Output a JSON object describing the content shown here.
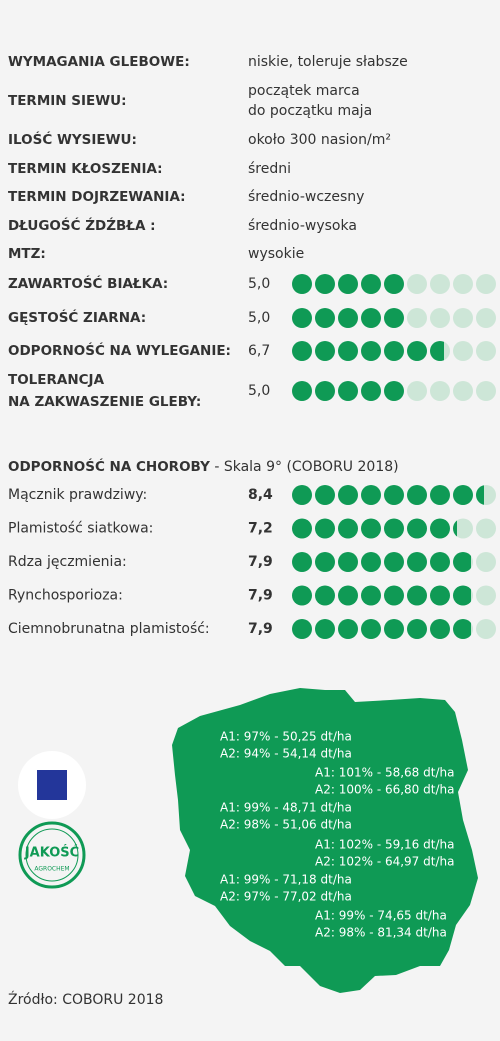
{
  "traits": [
    {
      "label": "WYMAGANIA GLEBOWE:",
      "value": [
        "niskie, toleruje słabsze"
      ]
    },
    {
      "label": "TERMIN SIEWU:",
      "value": [
        "początek marca",
        "do początku maja"
      ]
    },
    {
      "label": "ILOŚĆ WYSIEWU:",
      "value": [
        "około 300 nasion/m²"
      ]
    },
    {
      "label": "TERMIN KŁOSZENIA:",
      "value": [
        "średni"
      ]
    },
    {
      "label": "TERMIN DOJRZEWANIA:",
      "value": [
        "średnio-wczesny"
      ]
    },
    {
      "label": "DŁUGOŚĆ ŹDŹBŁA :",
      "value": [
        "średnio-wysoka"
      ]
    },
    {
      "label": "MTZ:",
      "value": [
        "wysokie"
      ]
    }
  ],
  "ratings": [
    {
      "label": [
        "ZAWARTOŚĆ BIAŁKA:"
      ],
      "score": 5.0,
      "score_label": "5,0"
    },
    {
      "label": [
        "GĘSTOŚĆ ZIARNA:"
      ],
      "score": 5.0,
      "score_label": "5,0"
    },
    {
      "label": [
        "ODPORNOŚĆ NA WYLEGANIE:"
      ],
      "score": 6.7,
      "score_label": "6,7"
    },
    {
      "label": [
        "TOLERANCJA",
        "NA ZAKWASZENIE GLEBY:"
      ],
      "score": 5.0,
      "score_label": "5,0"
    }
  ],
  "diseases": {
    "title": "ODPORNOŚĆ NA CHOROBY",
    "subtitle": " - Skala 9° (COBORU 2018)",
    "scale_max": 9,
    "rows": [
      {
        "label": "Mącznik prawdziwy:",
        "score": 8.4,
        "score_label": "8,4"
      },
      {
        "label": "Plamistość siatkowa:",
        "score": 7.2,
        "score_label": "7,2"
      },
      {
        "label": "Rdza jęczmienia:",
        "score": 7.9,
        "score_label": "7,9"
      },
      {
        "label": "Rynchosporioza:",
        "score": 7.9,
        "score_label": "7,9"
      },
      {
        "label": "Ciemnobrunatna plamistość:",
        "score": 7.9,
        "score_label": "7,9"
      }
    ]
  },
  "map_labels": [
    [
      "A1: 97% - 50,25 dt/ha",
      "A2: 94% - 54,14 dt/ha"
    ],
    [
      "A1: 101% - 58,68 dt/ha",
      "A2: 100% - 66,80 dt/ha"
    ],
    [
      "A1: 99% - 48,71 dt/ha",
      "A2: 98% - 51,06 dt/ha"
    ],
    [
      "A1: 102% - 59,16 dt/ha",
      "A2: 102% - 64,97 dt/ha"
    ],
    [
      "A1: 99% - 71,18 dt/ha",
      "A2: 97% - 77,02 dt/ha"
    ],
    [
      "A1: 99% - 74,65 dt/ha",
      "A2: 98% - 81,34 dt/ha"
    ]
  ],
  "badge": {
    "main": "JAKOŚĆ",
    "sub": "AGROCHEM"
  },
  "source": "Źródło: COBORU 2018"
}
